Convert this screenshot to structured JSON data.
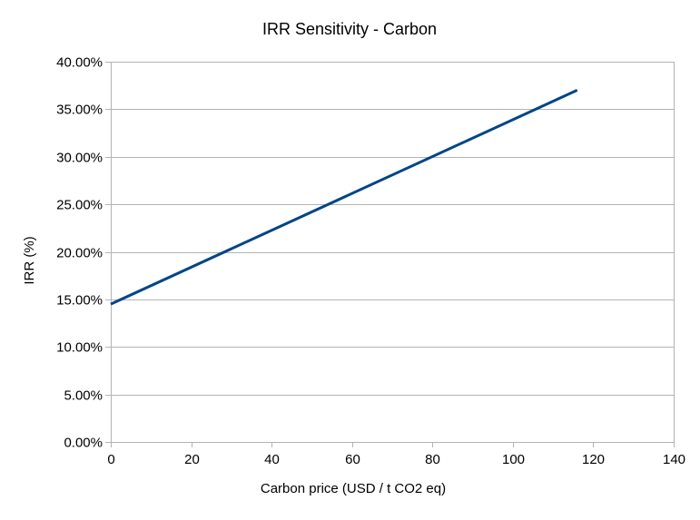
{
  "chart_data": {
    "type": "line",
    "title": "IRR Sensitivity - Carbon",
    "xlabel": "Carbon price (USD / t CO2 eq)",
    "ylabel": "IRR (%)",
    "xlim": [
      0,
      140
    ],
    "ylim": [
      0,
      0.4
    ],
    "x_ticks": [
      0,
      20,
      40,
      60,
      80,
      100,
      120,
      140
    ],
    "y_ticks": [
      0,
      0.05,
      0.1,
      0.15,
      0.2,
      0.25,
      0.3,
      0.35,
      0.4
    ],
    "x_tick_labels": [
      "0",
      "20",
      "40",
      "60",
      "80",
      "100",
      "120",
      "140"
    ],
    "y_tick_labels": [
      "0.00%",
      "5.00%",
      "10.00%",
      "15.00%",
      "20.00%",
      "25.00%",
      "30.00%",
      "35.00%",
      "40.00%"
    ],
    "grid": true,
    "legend": "none",
    "series": [
      {
        "color": "#004586",
        "x": [
          0,
          116
        ],
        "values": [
          0.145,
          0.37
        ]
      }
    ]
  }
}
